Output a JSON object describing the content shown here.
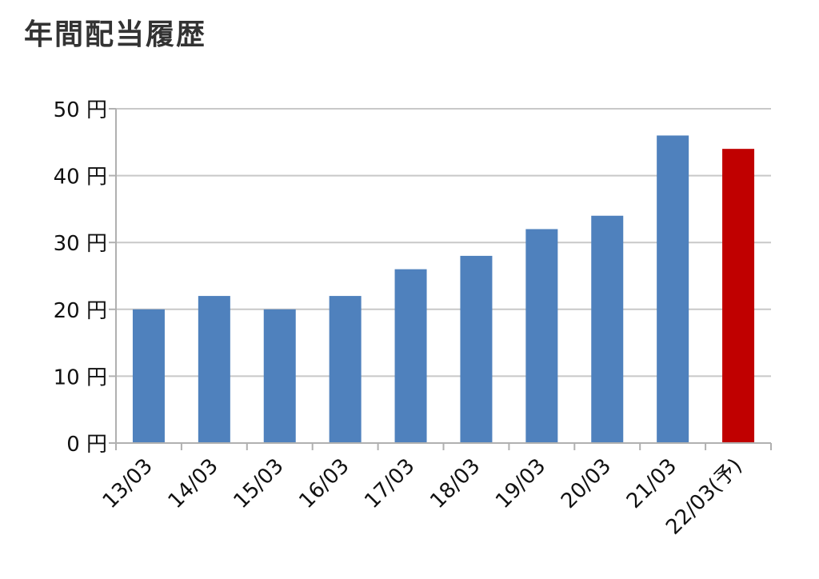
{
  "title": "年間配当履歴",
  "chart_data": {
    "type": "bar",
    "categories": [
      "13/03",
      "14/03",
      "15/03",
      "16/03",
      "17/03",
      "18/03",
      "19/03",
      "20/03",
      "21/03",
      "22/03(予)"
    ],
    "values": [
      20,
      22,
      20,
      22,
      26,
      28,
      32,
      34,
      46,
      44
    ],
    "y_ticks": [
      "0 円",
      "10 円",
      "20 円",
      "30 円",
      "40 円",
      "50 円"
    ],
    "ylim": [
      0,
      50
    ],
    "grid": true,
    "colors": {
      "actual": "#4f81bd",
      "forecast": "#c00000"
    },
    "highlight_index": 9
  }
}
